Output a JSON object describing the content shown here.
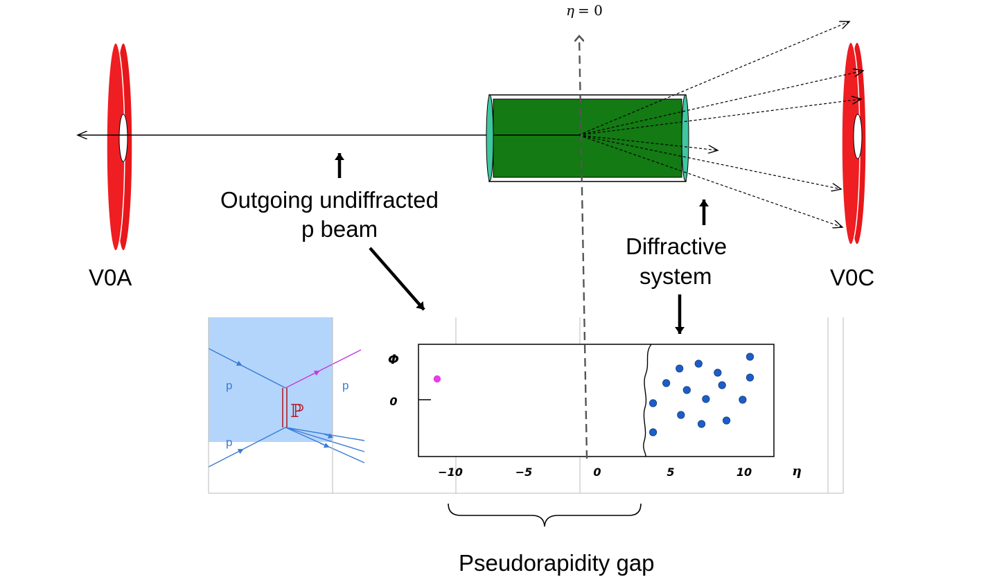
{
  "labels": {
    "eta_zero_symbol": "η",
    "eta_zero_eq": "= 0",
    "v0a": "V0A",
    "v0c": "V0C",
    "outgoing_line1": "Outgoing undiffracted",
    "outgoing_line2": "p beam",
    "diffractive_line1": "Diffractive",
    "diffractive_line2": "system",
    "gap": "Pseudorapidity gap"
  },
  "feynman": {
    "p_top_in": "p",
    "p_top_out": "p",
    "p_bottom_in": "p",
    "pomeron": "ℙ"
  },
  "chart_data": {
    "type": "scatter",
    "xlabel": "η",
    "ylabel": "Φ",
    "xlim": [
      -12,
      12
    ],
    "x_ticks": [
      -10,
      -5,
      0,
      5,
      10
    ],
    "y_ticks": [
      0
    ],
    "x_tick_labels": [
      "−10",
      "−5",
      "0",
      "5",
      "10"
    ],
    "y_tick_labels": [
      "0"
    ],
    "series": [
      {
        "color": "#e83ce8",
        "points": [
          [
            -10.9,
            0.3
          ]
        ]
      },
      {
        "color": "#1a5fc8",
        "points": [
          [
            5.6,
            0.45
          ],
          [
            6.9,
            0.52
          ],
          [
            8.2,
            0.39
          ],
          [
            10.4,
            0.62
          ],
          [
            4.7,
            0.24
          ],
          [
            6.1,
            0.14
          ],
          [
            8.5,
            0.21
          ],
          [
            10.4,
            0.32
          ],
          [
            3.8,
            -0.05
          ],
          [
            7.4,
            0.01
          ],
          [
            9.9,
            0.0
          ],
          [
            5.7,
            -0.22
          ],
          [
            7.1,
            -0.35
          ],
          [
            8.8,
            -0.3
          ],
          [
            3.8,
            -0.47
          ]
        ]
      }
    ],
    "ylim": [
      -0.75,
      0.8
    ]
  }
}
